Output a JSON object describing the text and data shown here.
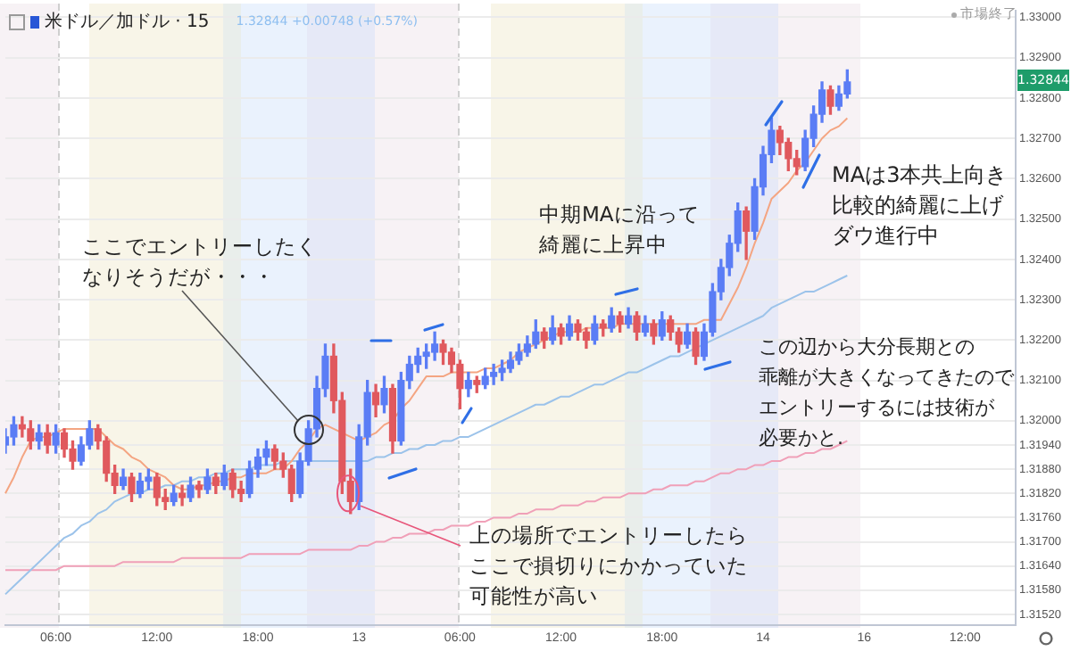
{
  "chart_data": {
    "type": "candlestick",
    "title": "米ドル／加ドル · 15",
    "subtitle": "1.32844  +0.00748 (+0.57%)",
    "annotations": [
      "ここでエントリーしたくなりそうだが・・・",
      {
        "text": "上の場所でエントリーしたらここで損切りにかかっていた可能性が高い",
        "y": 1.3182
      },
      "中期MAに沿って綺麗に上昇中",
      "MAは3本共上向き比較的綺麗に上げダウ進行中",
      "この辺から大分長期との乖離が大きくなってきたのでエントリーするには技術が必要かと.",
      "市場終了",
      {
        "text": "1.32844",
        "y": 1.32844
      }
    ],
    "categories": [
      null,
      null,
      null,
      null,
      null,
      null,
      "06:00",
      null,
      null,
      null,
      null,
      null,
      null,
      null,
      null,
      null,
      null,
      null,
      "12:00",
      null,
      null,
      null,
      null,
      null,
      null,
      null,
      null,
      null,
      null,
      null,
      "18:00",
      null,
      null,
      null,
      null,
      null,
      null,
      null,
      null,
      null,
      null,
      null,
      "13",
      null,
      null,
      null,
      null,
      null,
      null,
      null,
      null,
      null,
      null,
      null,
      "06:00",
      null,
      null,
      null,
      null,
      null,
      null,
      null,
      null,
      null,
      null,
      null,
      "12:00",
      null,
      null,
      null,
      null,
      null,
      null,
      null,
      null,
      null,
      null,
      null,
      "18:00",
      null,
      null,
      null,
      null,
      null,
      null,
      null,
      null,
      null,
      null,
      null,
      "14",
      null,
      null,
      null,
      null,
      null,
      null,
      null,
      null,
      null,
      null,
      null,
      "16",
      null,
      null,
      null,
      null,
      null,
      null,
      null,
      null,
      null,
      null,
      null,
      "12:00",
      null,
      null,
      null,
      null,
      null,
      null
    ],
    "ohlc": [
      [
        1.3194,
        1.3198,
        1.3192,
        1.3196
      ],
      [
        1.3196,
        1.3201,
        1.3194,
        1.3199
      ],
      [
        1.3199,
        1.3201,
        1.3196,
        1.3198
      ],
      [
        1.3198,
        1.32,
        1.3193,
        1.3195
      ],
      [
        1.3195,
        1.3199,
        1.3193,
        1.3197
      ],
      [
        1.3197,
        1.3199,
        1.3192,
        1.3194
      ],
      [
        1.3194,
        1.3199,
        1.3192,
        1.3197
      ],
      [
        1.3197,
        1.3198,
        1.3191,
        1.3193
      ],
      [
        1.3193,
        1.3195,
        1.3188,
        1.319
      ],
      [
        1.319,
        1.3196,
        1.3189,
        1.3194
      ],
      [
        1.3194,
        1.32,
        1.3193,
        1.3198
      ],
      [
        1.3198,
        1.3199,
        1.3193,
        1.3195
      ],
      [
        1.3195,
        1.3196,
        1.3185,
        1.3187
      ],
      [
        1.3187,
        1.3189,
        1.3182,
        1.3184
      ],
      [
        1.3184,
        1.3188,
        1.3183,
        1.3186
      ],
      [
        1.3186,
        1.3187,
        1.318,
        1.3182
      ],
      [
        1.3182,
        1.3187,
        1.3181,
        1.3185
      ],
      [
        1.3185,
        1.3188,
        1.3183,
        1.3186
      ],
      [
        1.3186,
        1.3187,
        1.3179,
        1.3181
      ],
      [
        1.3181,
        1.3183,
        1.3178,
        1.318
      ],
      [
        1.318,
        1.3184,
        1.3179,
        1.3182
      ],
      [
        1.3182,
        1.3184,
        1.3179,
        1.3181
      ],
      [
        1.3181,
        1.3186,
        1.318,
        1.3184
      ],
      [
        1.3184,
        1.3185,
        1.3181,
        1.3183
      ],
      [
        1.3183,
        1.3188,
        1.3182,
        1.3186
      ],
      [
        1.3186,
        1.3187,
        1.3182,
        1.3184
      ],
      [
        1.3184,
        1.3189,
        1.3183,
        1.3187
      ],
      [
        1.3187,
        1.3188,
        1.3181,
        1.3183
      ],
      [
        1.3183,
        1.3185,
        1.318,
        1.3182
      ],
      [
        1.3182,
        1.319,
        1.3181,
        1.3188
      ],
      [
        1.3188,
        1.3193,
        1.3186,
        1.3191
      ],
      [
        1.3191,
        1.3195,
        1.3189,
        1.3193
      ],
      [
        1.3193,
        1.3194,
        1.3188,
        1.319
      ],
      [
        1.319,
        1.3192,
        1.3186,
        1.3188
      ],
      [
        1.3188,
        1.3189,
        1.318,
        1.3182
      ],
      [
        1.3182,
        1.3192,
        1.3181,
        1.319
      ],
      [
        1.319,
        1.32,
        1.3189,
        1.3198
      ],
      [
        1.3198,
        1.3211,
        1.3196,
        1.3208
      ],
      [
        1.3208,
        1.3219,
        1.3206,
        1.3216
      ],
      [
        1.3216,
        1.3219,
        1.3202,
        1.3205
      ],
      [
        1.3205,
        1.3207,
        1.3182,
        1.3185
      ],
      [
        1.3185,
        1.3188,
        1.3177,
        1.318
      ],
      [
        1.318,
        1.3199,
        1.3178,
        1.3196
      ],
      [
        1.3196,
        1.321,
        1.3194,
        1.3207
      ],
      [
        1.3207,
        1.3209,
        1.3201,
        1.3204
      ],
      [
        1.3204,
        1.3211,
        1.3202,
        1.3208
      ],
      [
        1.3208,
        1.3209,
        1.3192,
        1.3195
      ],
      [
        1.3195,
        1.3212,
        1.3194,
        1.321
      ],
      [
        1.321,
        1.3216,
        1.3208,
        1.3214
      ],
      [
        1.3214,
        1.3218,
        1.3212,
        1.3216
      ],
      [
        1.3216,
        1.3219,
        1.3213,
        1.3217
      ],
      [
        1.3217,
        1.3222,
        1.3215,
        1.3219
      ],
      [
        1.3219,
        1.322,
        1.3214,
        1.3217
      ],
      [
        1.3217,
        1.3218,
        1.3212,
        1.3214
      ],
      [
        1.3214,
        1.3215,
        1.3203,
        1.3208
      ],
      [
        1.3208,
        1.3212,
        1.3206,
        1.321
      ],
      [
        1.321,
        1.3211,
        1.3207,
        1.3209
      ],
      [
        1.3209,
        1.3213,
        1.3208,
        1.3211
      ],
      [
        1.3211,
        1.3214,
        1.3209,
        1.3212
      ],
      [
        1.3212,
        1.3215,
        1.321,
        1.3213
      ],
      [
        1.3213,
        1.3217,
        1.3212,
        1.3215
      ],
      [
        1.3215,
        1.3219,
        1.3214,
        1.3217
      ],
      [
        1.3217,
        1.3221,
        1.3216,
        1.3219
      ],
      [
        1.3219,
        1.3225,
        1.3218,
        1.3222
      ],
      [
        1.3222,
        1.3223,
        1.3218,
        1.322
      ],
      [
        1.322,
        1.3226,
        1.3219,
        1.3223
      ],
      [
        1.3223,
        1.3224,
        1.3219,
        1.3221
      ],
      [
        1.3221,
        1.3226,
        1.322,
        1.3224
      ],
      [
        1.3224,
        1.3225,
        1.322,
        1.3222
      ],
      [
        1.3222,
        1.3223,
        1.3218,
        1.322
      ],
      [
        1.322,
        1.3226,
        1.3219,
        1.3224
      ],
      [
        1.3224,
        1.3225,
        1.3221,
        1.3223
      ],
      [
        1.3223,
        1.3228,
        1.3222,
        1.3226
      ],
      [
        1.3226,
        1.3227,
        1.3222,
        1.3224
      ],
      [
        1.3224,
        1.3228,
        1.3223,
        1.3226
      ],
      [
        1.3226,
        1.3227,
        1.322,
        1.3222
      ],
      [
        1.3222,
        1.3226,
        1.3221,
        1.3224
      ],
      [
        1.3224,
        1.3225,
        1.3219,
        1.3221
      ],
      [
        1.3221,
        1.3227,
        1.322,
        1.3225
      ],
      [
        1.3225,
        1.3226,
        1.322,
        1.3222
      ],
      [
        1.3222,
        1.3223,
        1.3217,
        1.3219
      ],
      [
        1.3219,
        1.3224,
        1.3218,
        1.3222
      ],
      [
        1.3222,
        1.3223,
        1.3214,
        1.3216
      ],
      [
        1.3216,
        1.3224,
        1.3215,
        1.3222
      ],
      [
        1.3222,
        1.3234,
        1.3221,
        1.3232
      ],
      [
        1.3232,
        1.324,
        1.323,
        1.3238
      ],
      [
        1.3238,
        1.3246,
        1.3236,
        1.3244
      ],
      [
        1.3244,
        1.3254,
        1.3242,
        1.3252
      ],
      [
        1.3252,
        1.3253,
        1.324,
        1.3247
      ],
      [
        1.3247,
        1.326,
        1.3245,
        1.3258
      ],
      [
        1.3258,
        1.3268,
        1.3256,
        1.3266
      ],
      [
        1.3266,
        1.3275,
        1.3264,
        1.3272
      ],
      [
        1.3272,
        1.3273,
        1.3266,
        1.3269
      ],
      [
        1.3269,
        1.327,
        1.3262,
        1.3265
      ],
      [
        1.3265,
        1.3267,
        1.3261,
        1.3263
      ],
      [
        1.3263,
        1.3272,
        1.3262,
        1.327
      ],
      [
        1.327,
        1.3278,
        1.3268,
        1.3276
      ],
      [
        1.3276,
        1.3284,
        1.3274,
        1.3282
      ],
      [
        1.3282,
        1.3283,
        1.3276,
        1.3278
      ],
      [
        1.3278,
        1.3283,
        1.3277,
        1.3281
      ],
      [
        1.3281,
        1.3287,
        1.328,
        1.3284
      ],
      null,
      null,
      null,
      null,
      null,
      null,
      null,
      null,
      null,
      null,
      null,
      null,
      null,
      null,
      null,
      null,
      null,
      null,
      null,
      null
    ],
    "colors": [
      "#5b7df5",
      "#5b7df5",
      "#e0595e",
      "#e0595e",
      "#5b7df5",
      "#e0595e",
      "#5b7df5",
      "#e0595e",
      "#e0595e",
      "#5b7df5",
      "#5b7df5",
      "#e0595e",
      "#e0595e",
      "#e0595e",
      "#5b7df5",
      "#e0595e",
      "#5b7df5",
      "#5b7df5",
      "#e0595e",
      "#e0595e",
      "#5b7df5",
      "#e0595e",
      "#5b7df5",
      "#e0595e",
      "#5b7df5",
      "#e0595e",
      "#5b7df5",
      "#e0595e",
      "#e0595e",
      "#5b7df5",
      "#5b7df5",
      "#5b7df5",
      "#e0595e",
      "#e0595e",
      "#e0595e",
      "#5b7df5",
      "#5b7df5",
      "#5b7df5",
      "#5b7df5",
      "#e0595e",
      "#e0595e",
      "#e0595e",
      "#5b7df5",
      "#5b7df5",
      "#e0595e",
      "#5b7df5",
      "#e0595e",
      "#5b7df5",
      "#5b7df5",
      "#5b7df5",
      "#5b7df5",
      "#5b7df5",
      "#e0595e",
      "#e0595e",
      "#e0595e",
      "#5b7df5",
      "#e0595e",
      "#5b7df5",
      "#5b7df5",
      "#5b7df5",
      "#5b7df5",
      "#5b7df5",
      "#5b7df5",
      "#5b7df5",
      "#e0595e",
      "#5b7df5",
      "#e0595e",
      "#5b7df5",
      "#e0595e",
      "#e0595e",
      "#5b7df5",
      "#e0595e",
      "#5b7df5",
      "#e0595e",
      "#5b7df5",
      "#e0595e",
      "#5b7df5",
      "#e0595e",
      "#5b7df5",
      "#e0595e",
      "#e0595e",
      "#5b7df5",
      "#e0595e",
      "#5b7df5",
      "#5b7df5",
      "#5b7df5",
      "#5b7df5",
      "#5b7df5",
      "#e0595e",
      "#5b7df5",
      "#5b7df5",
      "#5b7df5",
      "#e0595e",
      "#e0595e",
      "#e0595e",
      "#5b7df5",
      "#5b7df5",
      "#5b7df5",
      "#e0595e",
      "#5b7df5",
      "#5b7df5",
      null,
      null,
      null,
      null,
      null,
      null,
      null,
      null,
      null,
      null,
      null,
      null,
      null,
      null,
      null,
      null,
      null,
      null,
      null,
      null
    ],
    "series": [
      {
        "type": "line",
        "color": "#f4a582",
        "values": [
          1.3182,
          1.3186,
          1.3191,
          1.3195,
          1.3196,
          1.3196,
          1.3197,
          1.3198,
          1.3198,
          1.3198,
          1.3198,
          1.3198,
          1.3196,
          1.3194,
          1.3193,
          1.3191,
          1.319,
          1.3188,
          1.3187,
          1.3186,
          1.3184,
          1.3183,
          1.3183,
          1.3184,
          1.3184,
          1.3185,
          1.3185,
          1.3186,
          1.3186,
          1.3187,
          1.3187,
          1.3187,
          1.3188,
          1.3188,
          1.319,
          1.3193,
          1.3195,
          1.3198,
          1.3199,
          1.3198,
          1.3197,
          1.3196,
          1.3195,
          1.3196,
          1.3197,
          1.3199,
          1.32,
          1.3203,
          1.3205,
          1.3208,
          1.3211,
          1.3211,
          1.3211,
          1.3212,
          1.3212,
          1.3212,
          1.3212,
          1.3213,
          1.3213,
          1.3214,
          1.3215,
          1.3217,
          1.3218,
          1.3219,
          1.322,
          1.3221,
          1.3222,
          1.3222,
          1.3222,
          1.3223,
          1.3223,
          1.3223,
          1.3223,
          1.3224,
          1.3224,
          1.3224,
          1.3224,
          1.3224,
          1.3224,
          1.3224,
          1.3224,
          1.3224,
          1.3224,
          1.3225,
          1.3225,
          1.3225,
          1.3229,
          1.3233,
          1.3238,
          1.3244,
          1.3249,
          1.3255,
          1.3257,
          1.3259,
          1.3262,
          1.3264,
          1.3267,
          1.327,
          1.3272,
          1.3273,
          1.3275,
          null,
          null,
          null,
          null,
          null,
          null,
          null,
          null,
          null,
          null,
          null,
          null,
          null,
          null,
          null,
          null,
          null,
          null,
          null,
          null
        ]
      },
      {
        "type": "line",
        "color": "#9cc3ea",
        "values": [
          1.3157,
          1.3159,
          1.3161,
          1.3163,
          1.3165,
          1.3167,
          1.3169,
          1.3171,
          1.3172,
          1.3174,
          1.3175,
          1.3177,
          1.3178,
          1.318,
          1.3181,
          1.3182,
          1.3182,
          1.3183,
          1.3183,
          1.3184,
          1.3184,
          1.3185,
          1.3185,
          1.3186,
          1.3186,
          1.3187,
          1.3187,
          1.3188,
          1.3188,
          1.3188,
          1.3189,
          1.3189,
          1.3189,
          1.319,
          1.319,
          1.319,
          1.319,
          1.319,
          1.319,
          1.319,
          1.319,
          1.319,
          1.319,
          1.319,
          1.3191,
          1.3191,
          1.3192,
          1.3192,
          1.3193,
          1.3193,
          1.3194,
          1.3194,
          1.3195,
          1.3195,
          1.3196,
          1.3196,
          1.3197,
          1.3198,
          1.3199,
          1.32,
          1.3201,
          1.3202,
          1.3203,
          1.3204,
          1.3204,
          1.3205,
          1.3206,
          1.3206,
          1.3207,
          1.3208,
          1.3209,
          1.3209,
          1.321,
          1.3211,
          1.3212,
          1.3212,
          1.3213,
          1.3214,
          1.3215,
          1.3216,
          1.3216,
          1.3217,
          1.3218,
          1.3219,
          1.322,
          1.3221,
          1.3222,
          1.3223,
          1.3224,
          1.3225,
          1.3226,
          1.3228,
          1.3229,
          1.323,
          1.3231,
          1.3232,
          1.3232,
          1.3233,
          1.3234,
          1.3235,
          1.3236,
          null,
          null,
          null,
          null,
          null,
          null,
          null,
          null,
          null,
          null,
          null,
          null,
          null,
          null,
          null,
          null,
          null,
          null,
          null,
          null
        ]
      },
      {
        "type": "line",
        "color": "#f0a0b8",
        "values": [
          1.3163,
          1.3163,
          1.3163,
          1.3163,
          1.3163,
          1.3163,
          1.3163,
          1.3164,
          1.3164,
          1.3164,
          1.3164,
          1.3164,
          1.3164,
          1.3164,
          1.3165,
          1.3165,
          1.3165,
          1.3165,
          1.3165,
          1.3165,
          1.3165,
          1.3166,
          1.3166,
          1.3166,
          1.3166,
          1.3166,
          1.3166,
          1.3166,
          1.3166,
          1.3167,
          1.3167,
          1.3167,
          1.3167,
          1.3167,
          1.3167,
          1.3167,
          1.3168,
          1.3168,
          1.3168,
          1.3168,
          1.3168,
          1.3168,
          1.3169,
          1.3169,
          1.317,
          1.317,
          1.3171,
          1.3171,
          1.3172,
          1.3172,
          1.3172,
          1.3173,
          1.3173,
          1.3174,
          1.3174,
          1.3174,
          1.3175,
          1.3175,
          1.3176,
          1.3176,
          1.3176,
          1.3177,
          1.3177,
          1.3178,
          1.3178,
          1.3178,
          1.3179,
          1.3179,
          1.3179,
          1.318,
          1.318,
          1.3181,
          1.3181,
          1.3181,
          1.3182,
          1.3182,
          1.3182,
          1.3183,
          1.3183,
          1.3184,
          1.3184,
          1.3184,
          1.3185,
          1.3185,
          1.3186,
          1.3187,
          1.3187,
          1.3188,
          1.3188,
          1.3189,
          1.3189,
          1.319,
          1.319,
          1.3191,
          1.3191,
          1.3192,
          1.3192,
          1.3193,
          1.3193,
          1.3194,
          1.3195,
          null,
          null,
          null,
          null,
          null,
          null,
          null,
          null,
          null,
          null,
          null,
          null,
          null,
          null,
          null,
          null,
          null,
          null,
          null,
          null
        ]
      }
    ],
    "ylim": [
      1.31493,
      1.33017
    ],
    "yticks": [
      {
        "value": 1.33,
        "label": "1.33000"
      },
      {
        "value": 1.329,
        "label": "1.32900"
      },
      {
        "value": 1.328,
        "label": "1.32800"
      },
      {
        "value": 1.327,
        "label": "1.32700"
      },
      {
        "value": 1.326,
        "label": "1.32600"
      },
      {
        "value": 1.325,
        "label": "1.32500"
      },
      {
        "value": 1.324,
        "label": "1.32400"
      },
      {
        "value": 1.323,
        "label": "1.32300"
      },
      {
        "value": 1.322,
        "label": "1.32200"
      },
      {
        "value": 1.321,
        "label": "1.32100"
      },
      {
        "value": 1.32,
        "label": "1.32000"
      },
      {
        "value": 1.3194,
        "label": "1.31940"
      },
      {
        "value": 1.3188,
        "label": "1.31880"
      },
      {
        "value": 1.3182,
        "label": "1.31820"
      },
      {
        "value": 1.3176,
        "label": "1.31760"
      },
      {
        "value": 1.317,
        "label": "1.31700"
      },
      {
        "value": 1.3164,
        "label": "1.31640"
      },
      {
        "value": 1.3158,
        "label": "1.31580"
      },
      {
        "value": 1.3152,
        "label": "1.31520"
      }
    ],
    "grid": "y",
    "legend": false
  }
}
